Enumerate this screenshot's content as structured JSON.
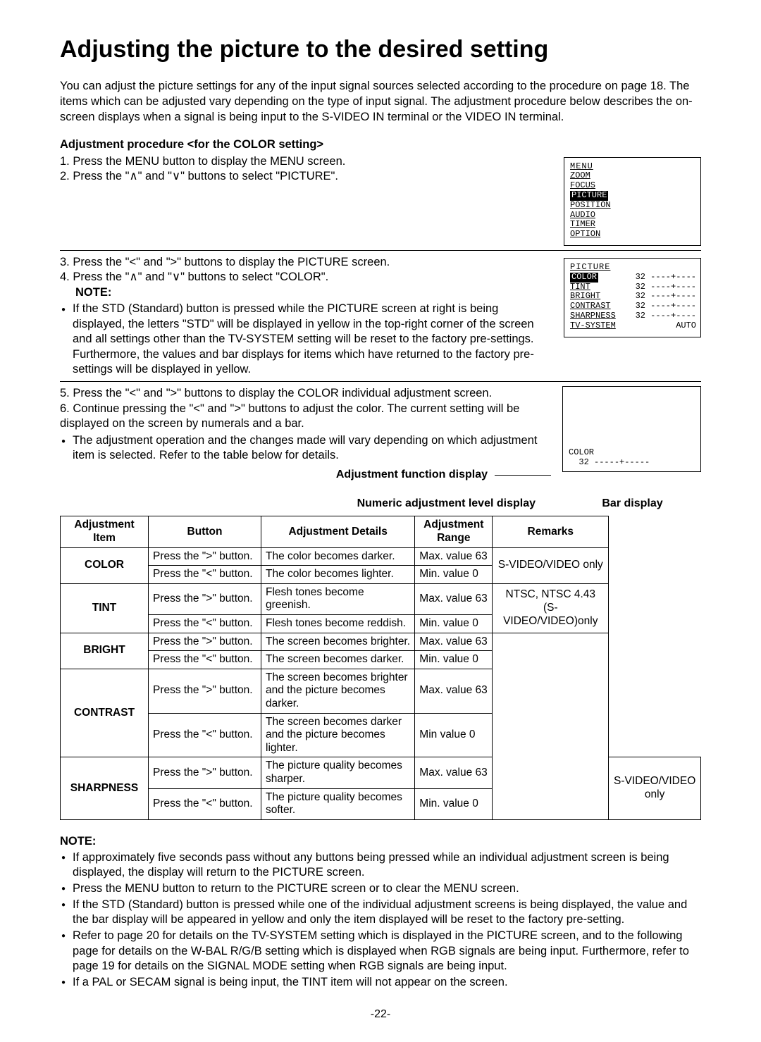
{
  "title": "Adjusting the picture to the desired setting",
  "intro": "You can adjust the picture settings for any of the input signal sources selected according to the procedure on page 18. The items which can be adjusted vary depending on the type of input signal. The adjustment procedure below describes the on-screen displays when a signal is being input to the S-VIDEO IN terminal or the VIDEO IN terminal.",
  "proc_title": "Adjustment procedure <for the COLOR setting>",
  "steps": {
    "s1": "Press the MENU button to display the MENU screen.",
    "s2": "Press the \"∧\" and \"∨\" buttons to select \"PICTURE\".",
    "s3": "Press the \"<\" and \">\" buttons to display the PICTURE screen.",
    "s4": "Press the \"∧\" and \"∨\" buttons to select \"COLOR\".",
    "s5": "Press the \"<\" and \">\" buttons to display the COLOR individual adjustment screen.",
    "s6a": "Continue pressing the \"<\" and \">\" buttons to adjust the color. The current setting will be displayed on the screen by numerals and a bar.",
    "s6b": "The adjustment operation and the changes made will vary depending on which adjustment item is selected. Refer to the table below for details."
  },
  "note_label": "NOTE:",
  "note_mid": "If the STD (Standard) button is pressed while the PICTURE screen at right is being displayed, the letters \"STD\" will be displayed in yellow in the top-right corner of the screen and all settings other than the TV-SYSTEM setting will be reset to the factory pre-settings. Furthermore, the values and bar displays for items which have returned to the factory pre-settings will be displayed in yellow.",
  "osd_menu": {
    "title": "MENU",
    "items": [
      "ZOOM",
      "FOCUS",
      "PICTURE",
      "POSITION",
      "AUDIO",
      "TIMER",
      "OPTION"
    ],
    "selected": "PICTURE"
  },
  "osd_picture": {
    "title": "PICTURE",
    "rows": [
      {
        "label": "COLOR",
        "val": "32",
        "selected": true,
        "bar": "----+----"
      },
      {
        "label": "TINT",
        "val": "32",
        "selected": false,
        "bar": "----+----"
      },
      {
        "label": "BRIGHT",
        "val": "32",
        "selected": false,
        "bar": "----+----"
      },
      {
        "label": "CONTRAST",
        "val": "32",
        "selected": false,
        "bar": "----+----"
      },
      {
        "label": "SHARPNESS",
        "val": "32",
        "selected": false,
        "bar": "----+----"
      },
      {
        "label": "TV-SYSTEM",
        "val": "AUTO",
        "selected": false,
        "bar": ""
      }
    ]
  },
  "osd_color": {
    "label": "COLOR",
    "value": "32",
    "bar": "-----+-----"
  },
  "caption_fn": "Adjustment function display",
  "caption_num": "Numeric adjustment level display",
  "caption_bar": "Bar display",
  "table": {
    "headers": [
      "Adjustment Item",
      "Button",
      "Adjustment Details",
      "Adjustment Range",
      "Remarks"
    ],
    "groups": [
      {
        "item": "COLOR",
        "remarks": "S-VIDEO/VIDEO only",
        "remarks_rowspan": 2,
        "rows": [
          {
            "btn": "Press the \">\" button.",
            "det": "The color becomes darker.",
            "rng": "Max. value 63"
          },
          {
            "btn": "Press the \"<\" button.",
            "det": "The color becomes lighter.",
            "rng": "Min. value 0"
          }
        ]
      },
      {
        "item": "TINT",
        "remarks": "NTSC, NTSC 4.43 (S-VIDEO/VIDEO)only",
        "remarks_rowspan": 2,
        "rows": [
          {
            "btn": "Press the \">\" button.",
            "det": "Flesh tones become greenish.",
            "rng": "Max. value 63"
          },
          {
            "btn": "Press the \"<\" button.",
            "det": "Flesh tones become reddish.",
            "rng": "Min. value 0"
          }
        ]
      },
      {
        "item": "BRIGHT",
        "remarks": "",
        "remarks_rowspan": 6,
        "rows": [
          {
            "btn": "Press the \">\" button.",
            "det": "The screen becomes brighter.",
            "rng": "Max. value 63"
          },
          {
            "btn": "Press the \"<\" button.",
            "det": "The screen becomes darker.",
            "rng": "Min. value 0"
          }
        ]
      },
      {
        "item": "CONTRAST",
        "rows": [
          {
            "btn": "Press the \">\" button.",
            "det": "The screen becomes brighter and the picture becomes darker.",
            "rng": "Max. value 63"
          },
          {
            "btn": "Press the \"<\" button.",
            "det": "The screen becomes darker and the picture becomes lighter.",
            "rng": "Min value 0"
          }
        ]
      },
      {
        "item": "SHARPNESS",
        "remarks": "S-VIDEO/VIDEO only",
        "remarks_rowspan": 2,
        "rows": [
          {
            "btn": "Press the \">\" button.",
            "det": "The picture quality becomes sharper.",
            "rng": "Max. value 63"
          },
          {
            "btn": "Press the \"<\" button.",
            "det": "The picture quality becomes softer.",
            "rng": "Min. value 0"
          }
        ]
      }
    ]
  },
  "footnotes": [
    "If approximately five seconds pass without any buttons being pressed while an individual adjustment screen is being displayed, the display will return to the PICTURE screen.",
    "Press the MENU button to return to the PICTURE screen or to clear the MENU screen.",
    "If the STD (Standard) button is pressed while one of the individual adjustment screens is being displayed, the value and the bar display will be appeared in yellow and only the item displayed will be reset to the factory pre-setting.",
    "Refer to page 20 for details on the TV-SYSTEM setting which is displayed in the PICTURE screen, and to the following page for details on the W-BAL R/G/B setting which is displayed when RGB signals are being input. Furthermore, refer to page 19 for details on the SIGNAL MODE setting when RGB signals are being input.",
    "If a PAL or SECAM signal is being input, the TINT item will not appear on the screen."
  ],
  "page_number": "-22-"
}
